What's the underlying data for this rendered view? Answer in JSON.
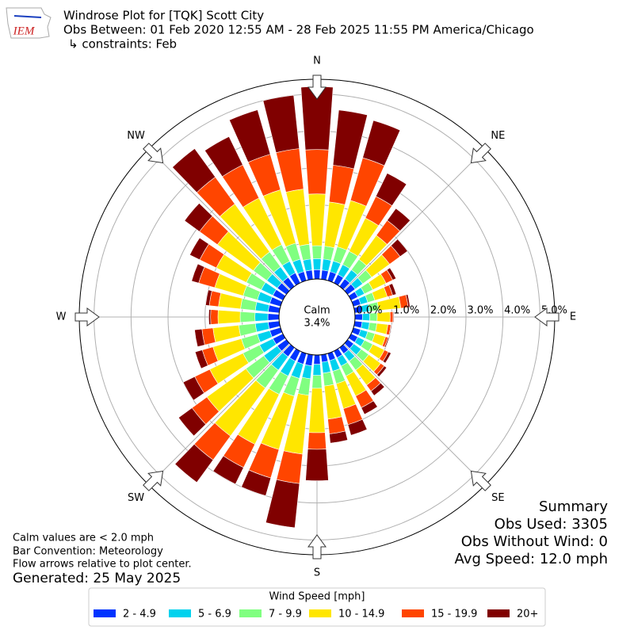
{
  "chart_data": {
    "type": "windrose",
    "title_lines": [
      "Windrose Plot for [TQK] Scott City",
      "Obs Between: 01 Feb 2020 12:55 AM - 28 Feb 2025 11:55 PM America/Chicago",
      "↳ constraints: Feb"
    ],
    "logo": "IEM",
    "theta": [
      0,
      10,
      20,
      30,
      40,
      50,
      60,
      70,
      80,
      90,
      100,
      110,
      120,
      130,
      140,
      150,
      160,
      170,
      180,
      190,
      200,
      210,
      220,
      230,
      240,
      250,
      260,
      270,
      280,
      290,
      300,
      310,
      320,
      330,
      340,
      350
    ],
    "thetaticks": [
      {
        "value": 0,
        "label": "N"
      },
      {
        "value": 45,
        "label": "NE"
      },
      {
        "value": 90,
        "label": "E"
      },
      {
        "value": 135,
        "label": "SE"
      },
      {
        "value": 180,
        "label": "S"
      },
      {
        "value": 225,
        "label": "SW"
      },
      {
        "value": 270,
        "label": "W"
      },
      {
        "value": 315,
        "label": "NW"
      }
    ],
    "ylim": [
      0,
      5.4
    ],
    "yticks": [
      {
        "value": 0,
        "label": "0.0%"
      },
      {
        "value": 1,
        "label": "1.0%"
      },
      {
        "value": 2,
        "label": "2.0%"
      },
      {
        "value": 3,
        "label": "3.0%"
      },
      {
        "value": 4,
        "label": "4.0%"
      },
      {
        "value": 5,
        "label": "5.0%"
      }
    ],
    "calm_text": "Calm",
    "calm": {
      "value": 3.4,
      "label": "3.4%"
    },
    "legend_title": "Wind Speed [mph]",
    "series": [
      {
        "name": "2 - 4.9",
        "color": "#0033ff",
        "values": [
          0.25,
          0.25,
          0.25,
          0.25,
          0.25,
          0.25,
          0.2,
          0.2,
          0.2,
          0.2,
          0.2,
          0.2,
          0.2,
          0.2,
          0.2,
          0.2,
          0.2,
          0.2,
          0.25,
          0.3,
          0.3,
          0.3,
          0.3,
          0.3,
          0.3,
          0.3,
          0.3,
          0.3,
          0.3,
          0.3,
          0.3,
          0.3,
          0.3,
          0.3,
          0.25,
          0.25
        ]
      },
      {
        "name": "5 - 6.9",
        "color": "#00d2ee",
        "values": [
          0.3,
          0.3,
          0.3,
          0.3,
          0.3,
          0.25,
          0.2,
          0.2,
          0.2,
          0.2,
          0.2,
          0.2,
          0.2,
          0.25,
          0.25,
          0.25,
          0.3,
          0.3,
          0.3,
          0.35,
          0.4,
          0.45,
          0.45,
          0.45,
          0.4,
          0.35,
          0.35,
          0.35,
          0.35,
          0.35,
          0.35,
          0.35,
          0.35,
          0.35,
          0.35,
          0.3
        ]
      },
      {
        "name": "7 - 9.9",
        "color": "#80ff80",
        "values": [
          0.35,
          0.35,
          0.4,
          0.4,
          0.35,
          0.3,
          0.25,
          0.2,
          0.25,
          0.2,
          0.2,
          0.2,
          0.25,
          0.25,
          0.3,
          0.3,
          0.35,
          0.35,
          0.35,
          0.45,
          0.5,
          0.55,
          0.6,
          0.6,
          0.5,
          0.45,
          0.45,
          0.4,
          0.4,
          0.4,
          0.45,
          0.45,
          0.5,
          0.5,
          0.45,
          0.4
        ]
      },
      {
        "name": "10 - 14.9",
        "color": "#ffe600",
        "values": [
          1.4,
          1.2,
          1.3,
          1.0,
          0.8,
          0.6,
          0.4,
          0.35,
          0.6,
          0.35,
          0.3,
          0.3,
          0.35,
          0.4,
          0.5,
          0.6,
          0.7,
          0.9,
          1.2,
          1.6,
          1.5,
          1.5,
          1.6,
          1.3,
          1.0,
          0.8,
          0.7,
          0.6,
          0.6,
          0.8,
          0.9,
          1.2,
          1.6,
          1.4,
          1.5,
          1.5
        ]
      },
      {
        "name": "15 - 19.9",
        "color": "#ff4500",
        "values": [
          1.2,
          1.0,
          1.2,
          0.65,
          0.5,
          0.35,
          0.2,
          0.15,
          0.2,
          0.08,
          0.08,
          0.07,
          0.12,
          0.12,
          0.2,
          0.35,
          0.45,
          0.4,
          0.45,
          0.8,
          0.8,
          0.7,
          0.8,
          0.5,
          0.45,
          0.3,
          0.3,
          0.2,
          0.25,
          0.45,
          0.5,
          0.6,
          0.9,
          1.0,
          1.0,
          1.1
        ]
      },
      {
        "name": "20+",
        "color": "#800000",
        "values": [
          1.7,
          1.5,
          1.05,
          0.7,
          0.4,
          0.25,
          0.1,
          0.1,
          0.05,
          0.02,
          0.02,
          0.03,
          0.08,
          0.08,
          0.15,
          0.2,
          0.3,
          0.25,
          0.85,
          1.2,
          0.5,
          0.5,
          0.75,
          0.45,
          0.35,
          0.2,
          0.2,
          0.05,
          0.1,
          0.2,
          0.3,
          0.5,
          0.95,
          0.85,
          1.25,
          1.45
        ]
      }
    ],
    "summary": [
      "Summary",
      "Obs Used: 3305",
      "Obs Without Wind: 0",
      "Avg Speed: 12.0 mph"
    ],
    "notes": [
      "Calm values are < 2.0 mph",
      "Bar Convention: Meteorology",
      "Flow arrows relative to plot center."
    ],
    "generated": "Generated: 25 May 2025"
  }
}
